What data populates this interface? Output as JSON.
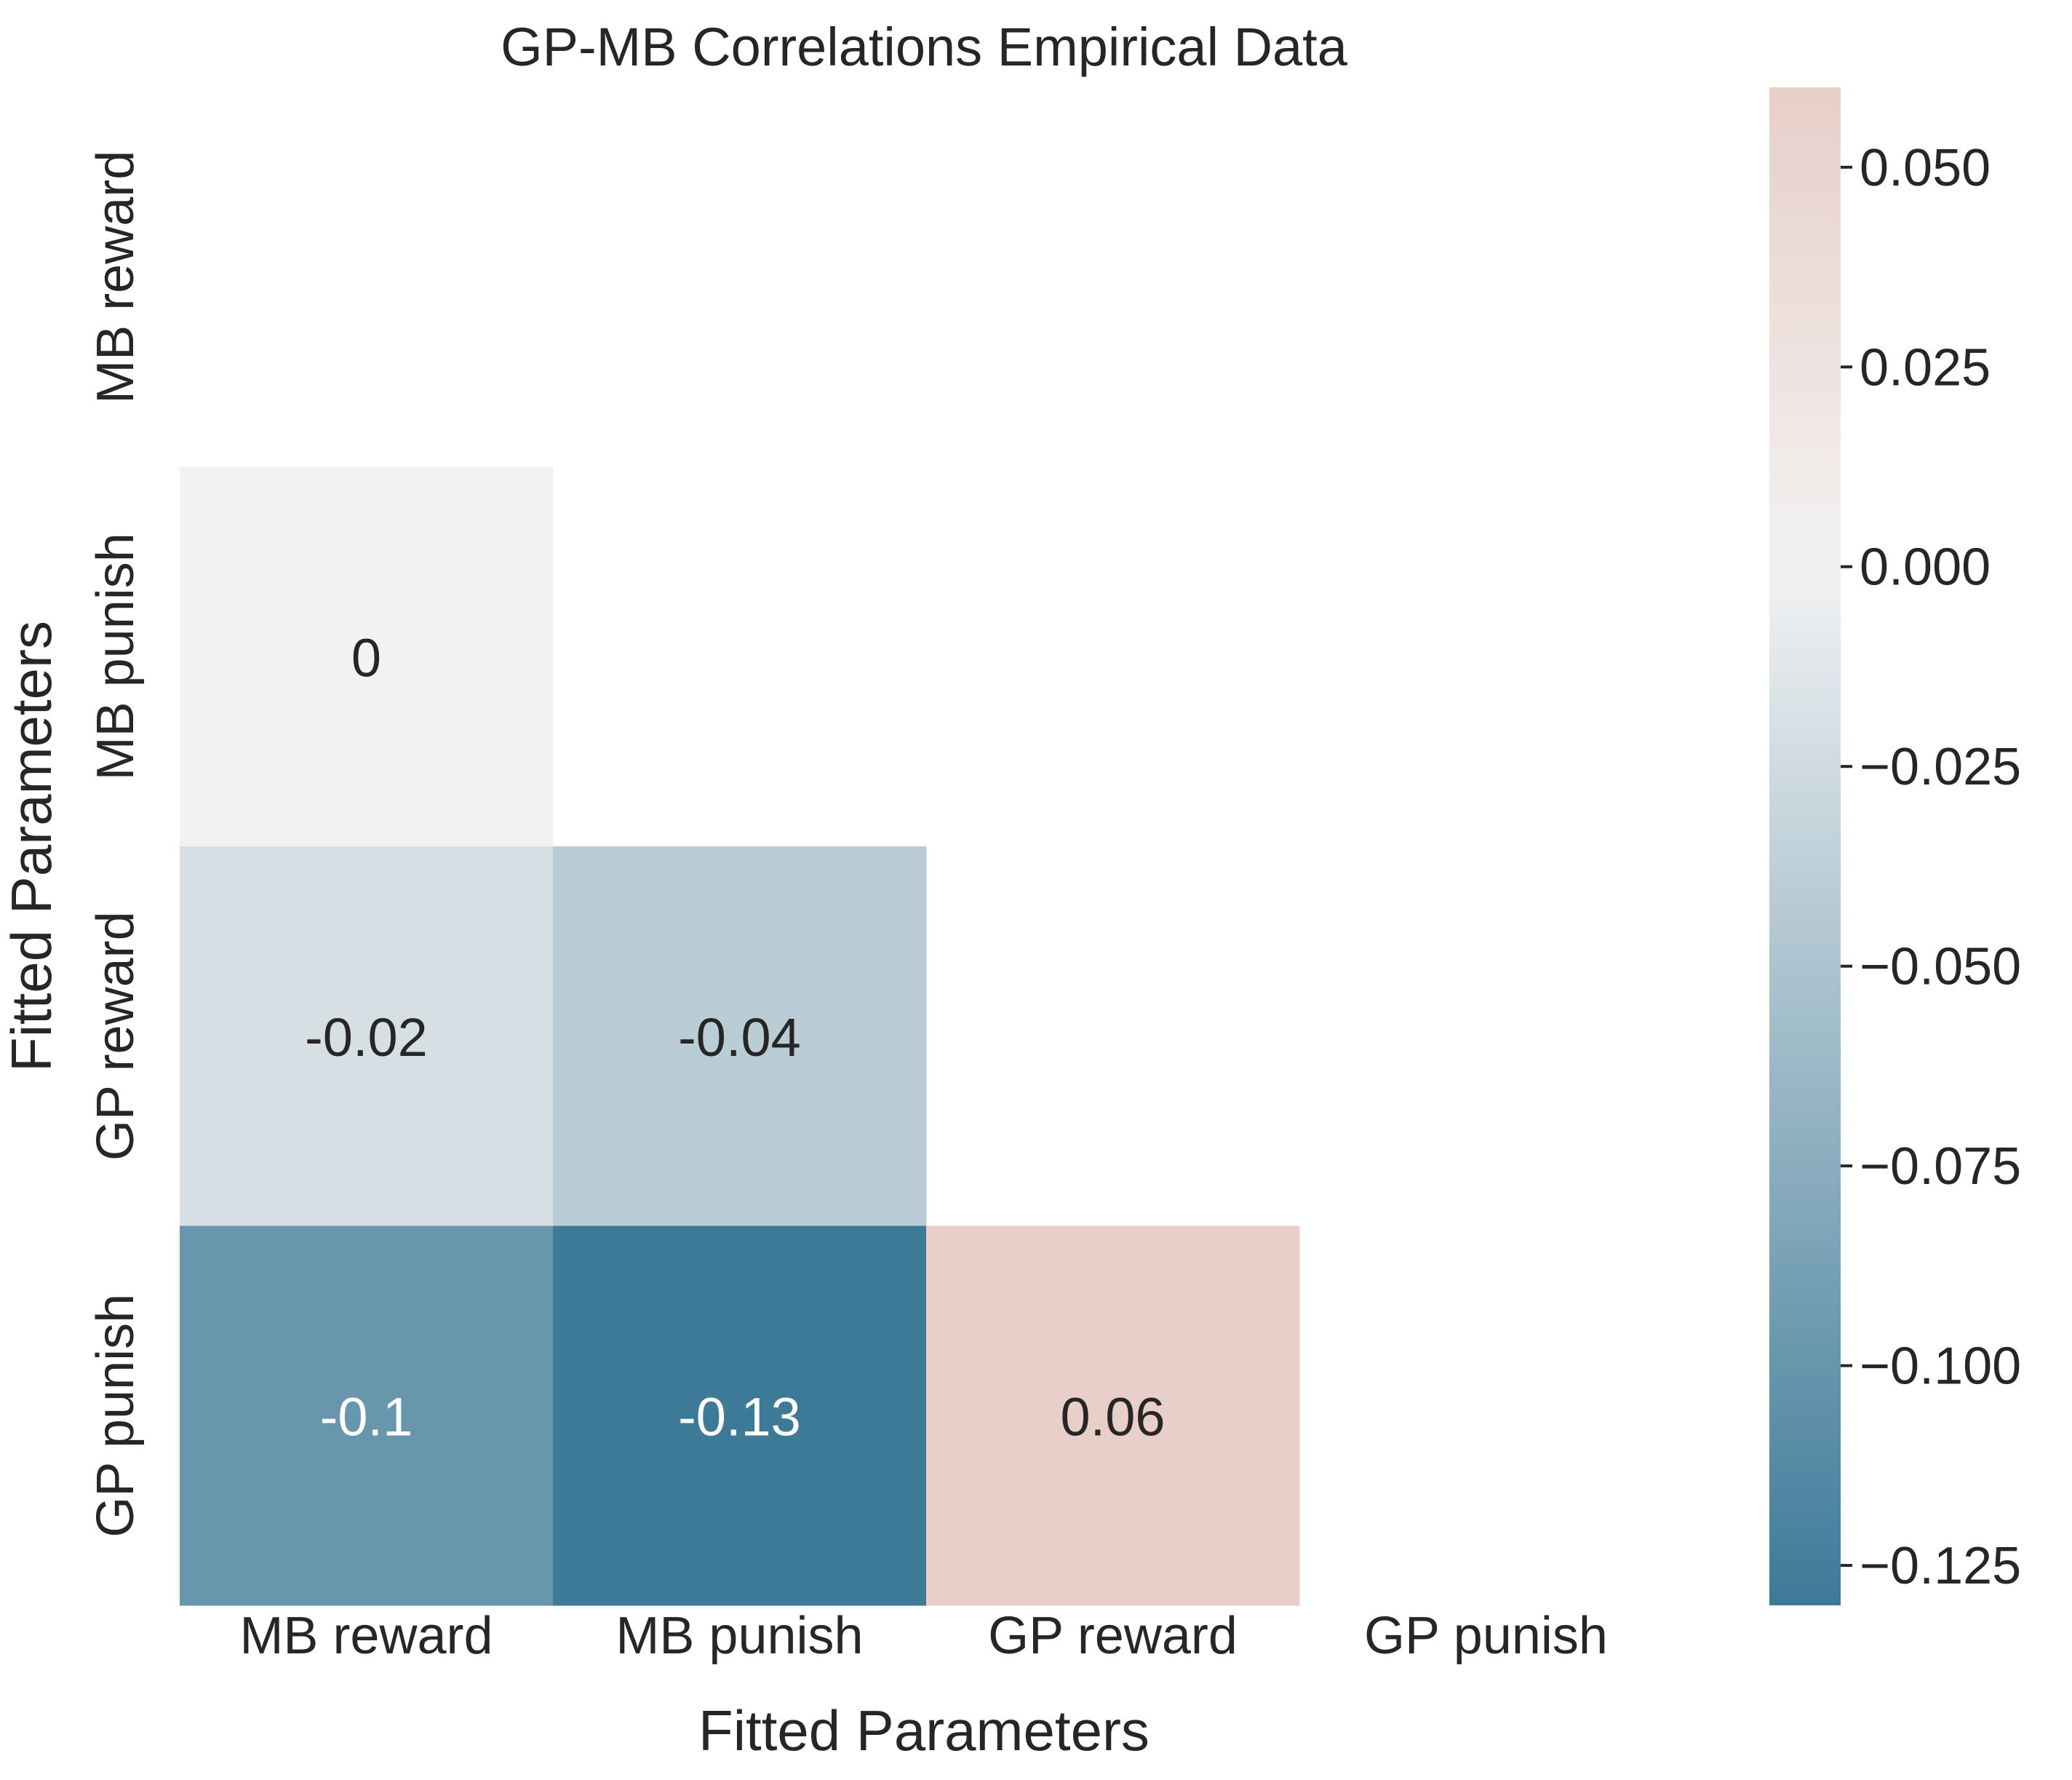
{
  "chart_data": {
    "type": "heatmap",
    "title": "GP-MB Correlations Empirical Data",
    "xlabel": "Fitted Parameters",
    "ylabel": "Fitted Parameters",
    "x_categories": [
      "MB reward",
      "MB punish",
      "GP reward",
      "GP punish"
    ],
    "y_categories": [
      "MB reward",
      "MB punish",
      "GP reward",
      "GP punish"
    ],
    "mask": "upper-triangle-including-diagonal",
    "cells": [
      {
        "row": 1,
        "col": 0,
        "value": 0,
        "label": "0"
      },
      {
        "row": 2,
        "col": 0,
        "value": -0.02,
        "label": "-0.02"
      },
      {
        "row": 2,
        "col": 1,
        "value": -0.04,
        "label": "-0.04"
      },
      {
        "row": 3,
        "col": 0,
        "value": -0.1,
        "label": "-0.1"
      },
      {
        "row": 3,
        "col": 1,
        "value": -0.13,
        "label": "-0.13"
      },
      {
        "row": 3,
        "col": 2,
        "value": 0.06,
        "label": "0.06"
      }
    ],
    "colorbar": {
      "range": [
        -0.13,
        0.06
      ],
      "ticks": [
        0.05,
        0.025,
        0.0,
        -0.025,
        -0.05,
        -0.075,
        -0.1,
        -0.125
      ],
      "tick_labels": [
        "0.050",
        "0.025",
        "0.000",
        "−0.025",
        "−0.050",
        "−0.075",
        "−0.100",
        "−0.125"
      ],
      "low_color": "#3d7a98",
      "mid_color": "#f2f2f2",
      "high_color": "#dca698"
    },
    "grid": false,
    "colorbar_position": "right"
  }
}
